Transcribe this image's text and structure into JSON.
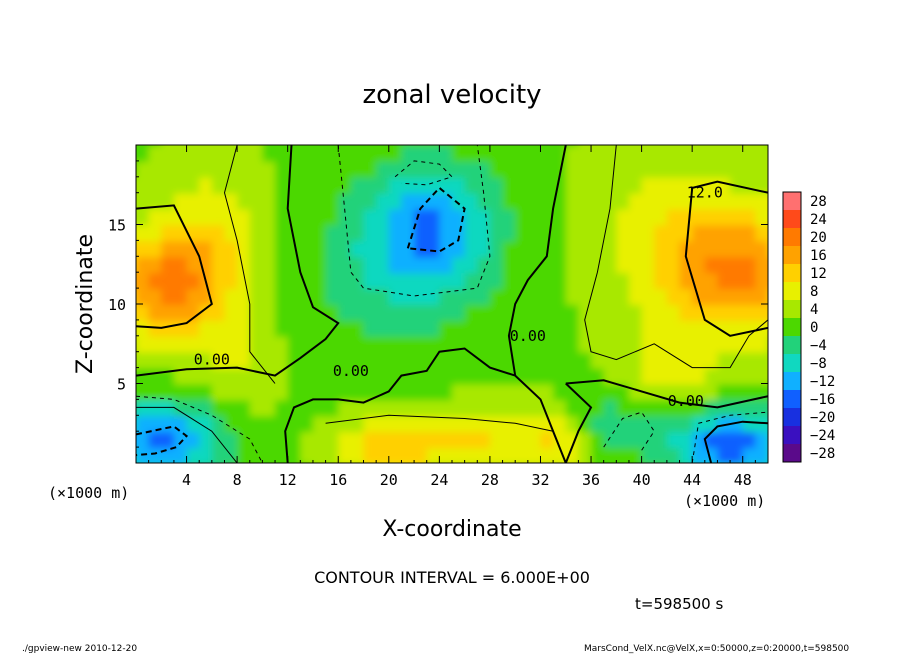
{
  "chart_data": {
    "type": "heatmap",
    "title": "zonal velocity",
    "xlabel": "X-coordinate",
    "ylabel": "Z-coordinate",
    "x_unit_label": "(×1000 m)",
    "y_unit_label": "(×1000 m)",
    "xlim": [
      0,
      50
    ],
    "ylim": [
      0,
      20
    ],
    "xticks": [
      4,
      8,
      12,
      16,
      20,
      24,
      28,
      32,
      36,
      40,
      44,
      48
    ],
    "yticks": [
      5,
      10,
      15
    ],
    "colorbar": {
      "levels": [
        28,
        24,
        20,
        16,
        12,
        8,
        4,
        0,
        -4,
        -8,
        -12,
        -16,
        -20,
        -24,
        -28
      ],
      "colors": [
        "#ff7070",
        "#ff4a1a",
        "#ff7a00",
        "#ffa200",
        "#ffd000",
        "#e8f000",
        "#a8e800",
        "#4cd800",
        "#22d27a",
        "#10d8c0",
        "#10b0ff",
        "#1060ff",
        "#1830e0",
        "#3a10c0",
        "#5a0a8a"
      ]
    },
    "contour_labels": [
      "12.0",
      "0.00",
      "0.00",
      "0.00",
      "0.00"
    ],
    "contour_interval_text": "CONTOUR INTERVAL = 6.000E+00",
    "time_text": "t=598500 s",
    "footer_left": "./gpview-new   2010-12-20",
    "footer_right": "MarsCond_VelX.nc@VelX,x=0:50000,z=0:20000,t=598500",
    "field_blobs": [
      {
        "x": 2,
        "z": 11.2,
        "u": 16,
        "sx": 5,
        "sz": 3.5
      },
      {
        "x": 48,
        "z": 12,
        "u": 16,
        "sx": 6,
        "sz": 4
      },
      {
        "x": 42,
        "z": 15,
        "u": 6,
        "sx": 6,
        "sz": 5
      },
      {
        "x": 23.5,
        "z": 15,
        "u": -13,
        "sx": 5,
        "sz": 4
      },
      {
        "x": 20,
        "z": 12,
        "u": -6,
        "sx": 7,
        "sz": 5
      },
      {
        "x": 2,
        "z": 1.5,
        "u": -16,
        "sx": 5,
        "sz": 2.5
      },
      {
        "x": 47,
        "z": 1.2,
        "u": -18,
        "sx": 5,
        "sz": 2.2
      },
      {
        "x": 38,
        "z": 2.5,
        "u": -6,
        "sx": 3,
        "sz": 2
      },
      {
        "x": 20,
        "z": 1,
        "u": 11,
        "sx": 4,
        "sz": 2
      },
      {
        "x": 27,
        "z": 1.5,
        "u": 9,
        "sx": 4,
        "sz": 2
      },
      {
        "x": 33,
        "z": 1.2,
        "u": 8,
        "sx": 2.5,
        "sz": 2
      },
      {
        "x": 6,
        "z": 14,
        "u": 7,
        "sx": 4,
        "sz": 5
      },
      {
        "x": 8,
        "z": 6,
        "u": 4,
        "sx": 3,
        "sz": 3
      },
      {
        "x": 42,
        "z": 6,
        "u": 6,
        "sx": 4,
        "sz": 3
      }
    ]
  }
}
